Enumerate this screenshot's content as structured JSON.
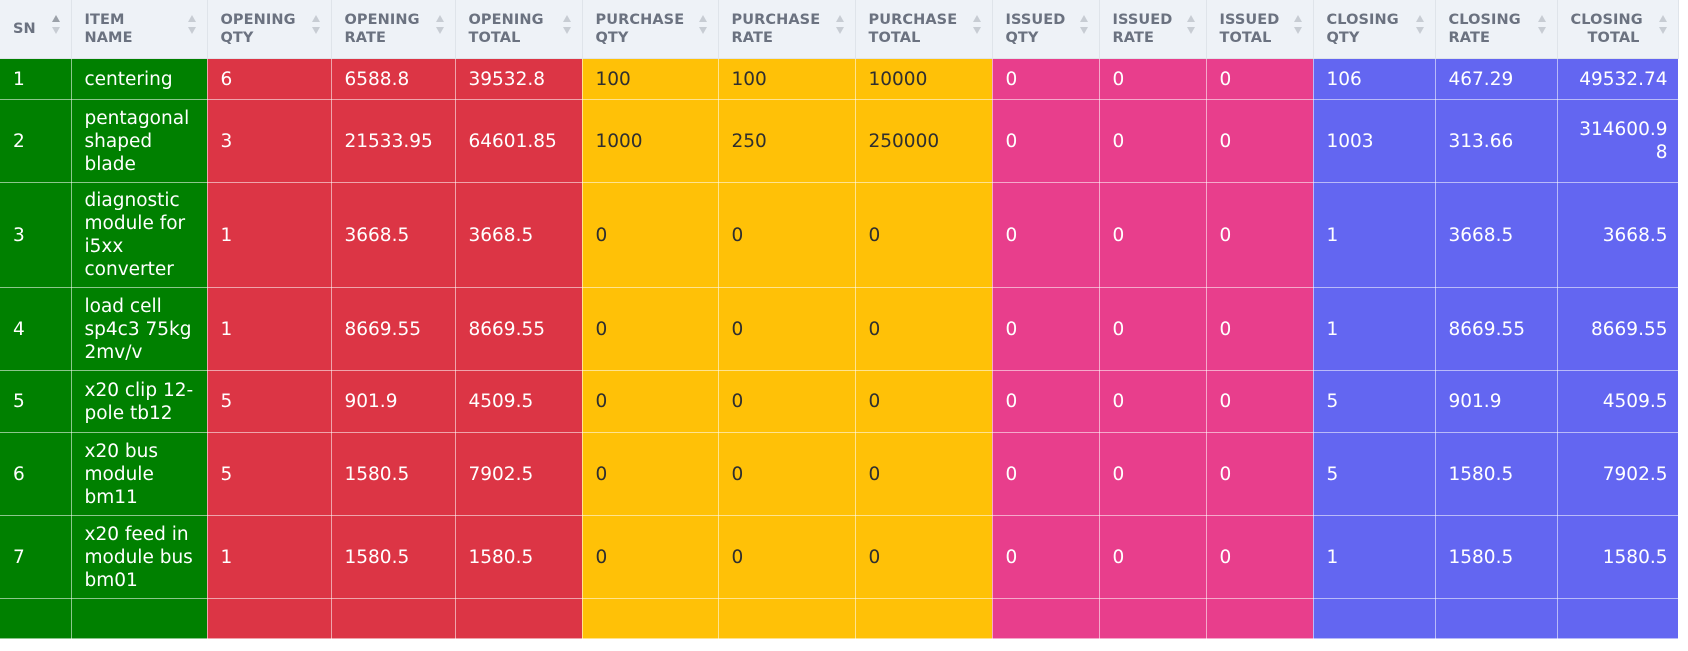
{
  "table": {
    "headers": [
      [
        "SN"
      ],
      [
        "ITEM",
        "NAME"
      ],
      [
        "OPENING",
        "QTY"
      ],
      [
        "OPENING",
        "RATE"
      ],
      [
        "OPENING",
        "TOTAL"
      ],
      [
        "PURCHASE",
        "QTY"
      ],
      [
        "PURCHASE",
        "RATE"
      ],
      [
        "PURCHASE",
        "TOTAL"
      ],
      [
        "ISSUED",
        "QTY"
      ],
      [
        "ISSUED",
        "RATE"
      ],
      [
        "ISSUED",
        "TOTAL"
      ],
      [
        "CLOSING",
        "QTY"
      ],
      [
        "CLOSING",
        "RATE"
      ],
      [
        "CLOSING",
        "TOTAL"
      ]
    ],
    "sorted_column": "SN",
    "rows": [
      [
        "1",
        "centering",
        "6",
        "6588.8",
        "39532.8",
        "100",
        "100",
        "10000",
        "0",
        "0",
        "0",
        "106",
        "467.29",
        "49532.74"
      ],
      [
        "2",
        "pentagonal shaped blade",
        "3",
        "21533.95",
        "64601.85",
        "1000",
        "250",
        "250000",
        "0",
        "0",
        "0",
        "1003",
        "313.66",
        "314600.98"
      ],
      [
        "3",
        "diagnostic module for i5xx converter",
        "1",
        "3668.5",
        "3668.5",
        "0",
        "0",
        "0",
        "0",
        "0",
        "0",
        "1",
        "3668.5",
        "3668.5"
      ],
      [
        "4",
        "load cell sp4c3 75kg 2mv/v",
        "1",
        "8669.55",
        "8669.55",
        "0",
        "0",
        "0",
        "0",
        "0",
        "0",
        "1",
        "8669.55",
        "8669.55"
      ],
      [
        "5",
        "x20 clip 12-pole tb12",
        "5",
        "901.9",
        "4509.5",
        "0",
        "0",
        "0",
        "0",
        "0",
        "0",
        "5",
        "901.9",
        "4509.5"
      ],
      [
        "6",
        "x20 bus module bm11",
        "5",
        "1580.5",
        "7902.5",
        "0",
        "0",
        "0",
        "0",
        "0",
        "0",
        "5",
        "1580.5",
        "7902.5"
      ],
      [
        "7",
        "x20 feed in module bus bm01",
        "1",
        "1580.5",
        "1580.5",
        "0",
        "0",
        "0",
        "0",
        "0",
        "0",
        "1",
        "1580.5",
        "1580.5"
      ],
      [
        "",
        "",
        "",
        "",
        "",
        "",
        "",
        "",
        "",
        "",
        "",
        "",
        "",
        ""
      ]
    ]
  },
  "colors": {
    "sn_item": "#008000",
    "opening": "#dc3545",
    "purchase": "#ffc107",
    "issued": "#e83e8c",
    "closing": "#6366f1",
    "header_bg": "#eef2f7"
  }
}
